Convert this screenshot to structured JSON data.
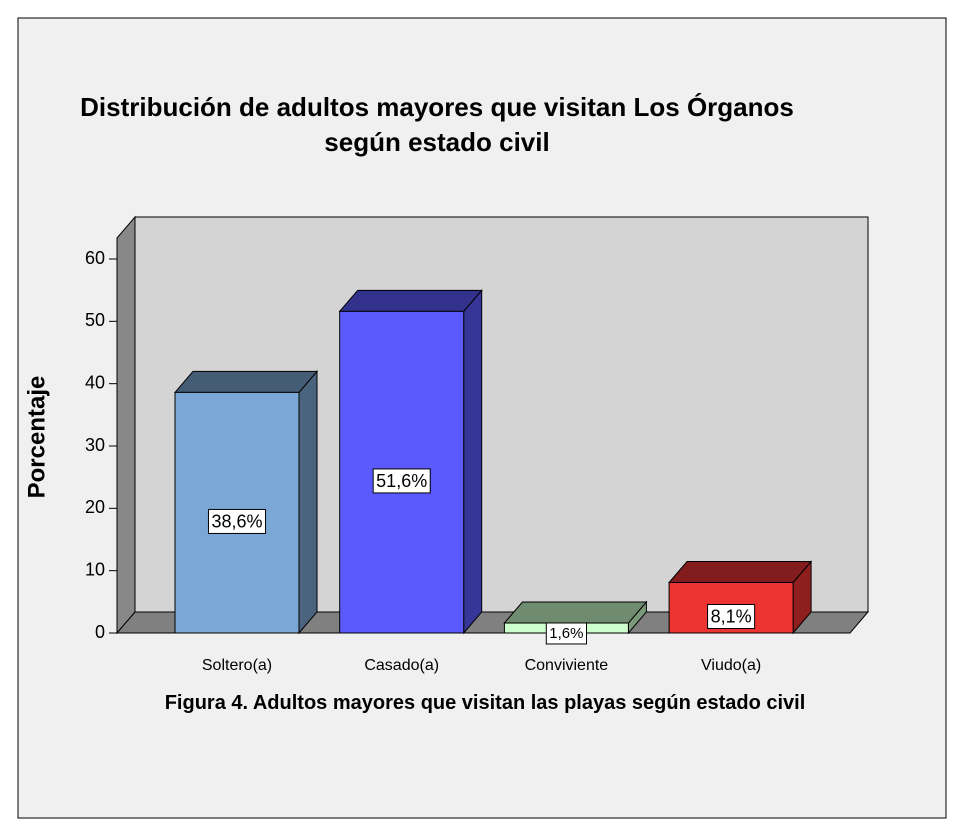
{
  "chart_data": {
    "type": "bar3d",
    "title": "Distribución de adultos mayores que visitan Los Órganos según estado civil",
    "y_label": "Porcentaje",
    "caption": "Figura 4. Adultos mayores que visitan las playas según estado civil",
    "categories": [
      "Soltero(a)",
      "Casado(a)",
      "Conviviente",
      "Viudo(a)"
    ],
    "values": [
      38.6,
      51.6,
      1.6,
      8.1
    ],
    "value_labels": [
      "38,6%",
      "51,6%",
      "1,6%",
      "8,1%"
    ],
    "colors": [
      "#7ba7d6",
      "#5a5aff",
      "#ccffcc",
      "#ee3333"
    ],
    "ylim": [
      0,
      60
    ],
    "yticks": [
      0,
      10,
      20,
      30,
      40,
      50,
      60
    ]
  }
}
